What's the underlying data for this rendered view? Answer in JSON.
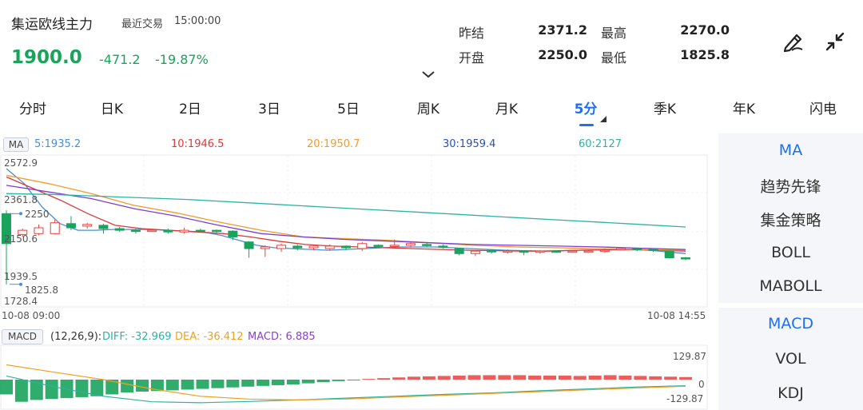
{
  "header": {
    "title": "集运欧线主力",
    "trade_label": "最近交易",
    "trade_time": "15:00:00",
    "price": "1900.0",
    "change": "-471.2",
    "change_pct": "-19.87%",
    "stats": {
      "prev_settle_label": "昨结",
      "prev_settle": "2371.2",
      "open_label": "开盘",
      "open": "2250.0",
      "high_label": "最高",
      "high": "2270.0",
      "low_label": "最低",
      "low": "1825.8"
    }
  },
  "tabs": [
    {
      "label": "分时"
    },
    {
      "label": "日K"
    },
    {
      "label": "2日"
    },
    {
      "label": "3日"
    },
    {
      "label": "5日"
    },
    {
      "label": "周K"
    },
    {
      "label": "月K"
    },
    {
      "label": "5分"
    },
    {
      "label": "季K"
    },
    {
      "label": "年K"
    },
    {
      "label": "闪电"
    }
  ],
  "active_tab": "5分",
  "ma": {
    "badge": "MA",
    "ma5": "5:1935.2",
    "ma10": "10:1946.5",
    "ma20": "20:1950.7",
    "ma30": "30:1959.4",
    "ma60": "60:2127"
  },
  "price_axis": {
    "top": "2572.9",
    "l2": "2361.8",
    "open_marker": "2250",
    "l3": "2150.6",
    "l4": "1939.5",
    "low_marker": "1825.8",
    "bottom": "1728.4"
  },
  "time_axis": {
    "start": "10-08 09:00",
    "end": "10-08 14:55"
  },
  "macd": {
    "badge": "MACD",
    "params": "(12,26,9):",
    "diff": "DIFF: -32.969",
    "dea": "DEA: -36.412",
    "macd": "MACD: 6.885",
    "axis_top": "129.87",
    "axis_zero": "0",
    "axis_bottom": "-129.87"
  },
  "panel_main": [
    "MA",
    "趋势先锋",
    "集金策略",
    "BOLL",
    "MABOLL"
  ],
  "panel_sub": [
    "MACD",
    "VOL",
    "KDJ"
  ],
  "colors": {
    "up": "#e8423f",
    "down": "#1aa35c",
    "accent": "#1e6ff0",
    "ma5": "#4a8fd6",
    "ma10": "#d63a3a",
    "ma20": "#f39a2b",
    "ma30": "#7b3fd1",
    "ma60": "#2bb3a3"
  },
  "chart_data": {
    "type": "candlestick",
    "price_range": [
      1728.4,
      2572.9
    ],
    "time_range": [
      "10-08 09:00",
      "10-08 14:55"
    ],
    "candles": [
      {
        "o": 2250,
        "c": 2070,
        "h": 2270,
        "l": 1825.8
      },
      {
        "o": 2125,
        "c": 2150,
        "h": 2160,
        "l": 2110
      },
      {
        "o": 2130,
        "c": 2165,
        "h": 2185,
        "l": 2120
      },
      {
        "o": 2130,
        "c": 2195,
        "h": 2215,
        "l": 2125
      },
      {
        "o": 2190,
        "c": 2165,
        "h": 2235,
        "l": 2150
      },
      {
        "o": 2175,
        "c": 2185,
        "h": 2195,
        "l": 2160
      },
      {
        "o": 2180,
        "c": 2160,
        "h": 2190,
        "l": 2130
      },
      {
        "o": 2160,
        "c": 2150,
        "h": 2170,
        "l": 2140
      },
      {
        "o": 2150,
        "c": 2145,
        "h": 2160,
        "l": 2130
      },
      {
        "o": 2145,
        "c": 2150,
        "h": 2160,
        "l": 2140
      },
      {
        "o": 2150,
        "c": 2140,
        "h": 2160,
        "l": 2130
      },
      {
        "o": 2140,
        "c": 2150,
        "h": 2165,
        "l": 2130
      },
      {
        "o": 2150,
        "c": 2145,
        "h": 2160,
        "l": 2140
      },
      {
        "o": 2150,
        "c": 2145,
        "h": 2155,
        "l": 2135
      },
      {
        "o": 2145,
        "c": 2110,
        "h": 2150,
        "l": 2090
      },
      {
        "o": 2080,
        "c": 2040,
        "h": 2085,
        "l": 1985
      },
      {
        "o": 2040,
        "c": 2050,
        "h": 2060,
        "l": 1990
      },
      {
        "o": 2040,
        "c": 2060,
        "h": 2070,
        "l": 2020
      },
      {
        "o": 2055,
        "c": 2045,
        "h": 2065,
        "l": 2030
      },
      {
        "o": 2045,
        "c": 2055,
        "h": 2060,
        "l": 2030
      },
      {
        "o": 2040,
        "c": 2055,
        "h": 2065,
        "l": 2030
      },
      {
        "o": 2055,
        "c": 2045,
        "h": 2060,
        "l": 2030
      },
      {
        "o": 2040,
        "c": 2070,
        "h": 2080,
        "l": 2025
      },
      {
        "o": 2060,
        "c": 2055,
        "h": 2065,
        "l": 2045
      },
      {
        "o": 2055,
        "c": 2060,
        "h": 2095,
        "l": 2045
      },
      {
        "o": 2060,
        "c": 2070,
        "h": 2080,
        "l": 2050
      },
      {
        "o": 2065,
        "c": 2060,
        "h": 2075,
        "l": 2050
      },
      {
        "o": 2055,
        "c": 2050,
        "h": 2065,
        "l": 2040
      },
      {
        "o": 2040,
        "c": 2010,
        "h": 2045,
        "l": 2000
      },
      {
        "o": 2010,
        "c": 2025,
        "h": 2030,
        "l": 1995
      },
      {
        "o": 2030,
        "c": 2020,
        "h": 2035,
        "l": 2010
      },
      {
        "o": 2025,
        "c": 2025,
        "h": 2035,
        "l": 2010
      },
      {
        "o": 2025,
        "c": 2020,
        "h": 2030,
        "l": 2000
      },
      {
        "o": 2020,
        "c": 2025,
        "h": 2030,
        "l": 2010
      },
      {
        "o": 2025,
        "c": 2020,
        "h": 2030,
        "l": 2015
      },
      {
        "o": 2025,
        "c": 2025,
        "h": 2030,
        "l": 2015
      },
      {
        "o": 2025,
        "c": 2025,
        "h": 2030,
        "l": 2015
      },
      {
        "o": 2025,
        "c": 2030,
        "h": 2040,
        "l": 2015
      },
      {
        "o": 2035,
        "c": 2040,
        "h": 2050,
        "l": 2030
      },
      {
        "o": 2040,
        "c": 2035,
        "h": 2045,
        "l": 2025
      },
      {
        "o": 2035,
        "c": 2030,
        "h": 2040,
        "l": 2020
      },
      {
        "o": 2025,
        "c": 1985,
        "h": 2030,
        "l": 1980
      },
      {
        "o": 1985,
        "c": 1980,
        "h": 1990,
        "l": 1970
      }
    ],
    "ma_lines": [
      {
        "name": "MA5",
        "color": "#4a8fd6",
        "values": [
          2520,
          2430,
          2290,
          2190,
          2150,
          2150,
          2155,
          2155,
          2155,
          2150,
          2145,
          2140,
          2120,
          2090,
          2060,
          2045,
          2040,
          2035,
          2030,
          2035,
          2040,
          2045,
          2050,
          2050,
          2050,
          2045,
          2040,
          2035,
          2030,
          2028,
          2026,
          2028,
          2030,
          2032,
          2034,
          2036,
          2030,
          2020,
          2010
        ]
      },
      {
        "name": "MA10",
        "color": "#d63a3a",
        "values": [
          2470,
          2400,
          2330,
          2250,
          2180,
          2160,
          2150,
          2140,
          2130,
          2110,
          2085,
          2065,
          2055,
          2050,
          2045,
          2040,
          2035,
          2030,
          2028,
          2025,
          2025,
          2030,
          2033,
          2033,
          2030,
          2025
        ]
      },
      {
        "name": "MA20",
        "color": "#f39a2b",
        "values": [
          2480,
          2430,
          2370,
          2300,
          2255,
          2200,
          2150,
          2110,
          2100,
          2090,
          2075,
          2060,
          2050,
          2045,
          2040,
          2035,
          2030
        ]
      },
      {
        "name": "MA30",
        "color": "#7b3fd1",
        "values": [
          2420,
          2380,
          2340,
          2280,
          2235,
          2180,
          2130,
          2110,
          2095,
          2085,
          2075,
          2065,
          2060,
          2055,
          2050,
          2042,
          2035
        ]
      },
      {
        "name": "MA60",
        "color": "#2bb3a3",
        "values": [
          2370,
          2365,
          2355,
          2345,
          2335,
          2320,
          2305,
          2290,
          2275,
          2260,
          2245,
          2230,
          2215,
          2200,
          2185,
          2170
        ]
      }
    ],
    "macd": {
      "range": [
        -129.87,
        129.87
      ],
      "hist": [
        -80,
        -120,
        -110,
        -105,
        -100,
        -95,
        -90,
        -80,
        -70,
        -65,
        -62,
        -58,
        -54,
        -50,
        -46,
        -42,
        -38,
        -34,
        -30,
        -26,
        -20,
        -14,
        -8,
        -4,
        4,
        8,
        12,
        16,
        18,
        20,
        22,
        24,
        24,
        24,
        24,
        22,
        22,
        22,
        20,
        22,
        24,
        22,
        20,
        18,
        16,
        14
      ],
      "dif": [
        20,
        -40,
        -90,
        -120,
        -125,
        -118,
        -110,
        -100,
        -90,
        -80,
        -72,
        -60,
        -50,
        -40,
        -33
      ],
      "dea": [
        80,
        40,
        0,
        -50,
        -90,
        -105,
        -110,
        -105,
        -95,
        -85,
        -75,
        -65,
        -55,
        -45,
        -36
      ]
    }
  }
}
